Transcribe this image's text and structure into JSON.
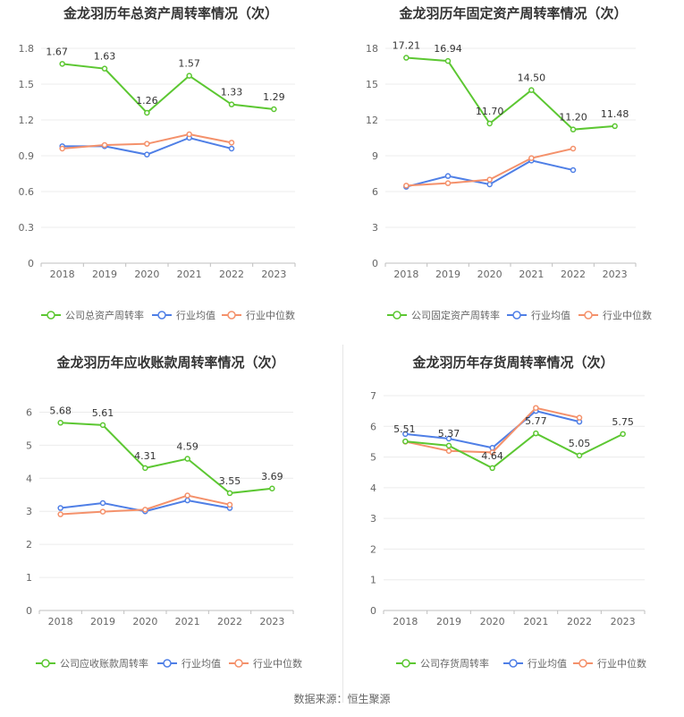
{
  "source_note": "数据来源：恒生聚源",
  "colors": {
    "company": "#5cc732",
    "avg": "#4f7fe6",
    "median": "#f4916b",
    "grid": "#ececec",
    "axis": "#bfbfbf",
    "text": "#666666",
    "title": "#333333"
  },
  "chart_data": [
    {
      "type": "line",
      "title": "金龙羽历年总资产周转率情况（次）",
      "x": [
        "2018",
        "2019",
        "2020",
        "2021",
        "2022",
        "2023"
      ],
      "ylim": [
        0,
        1.8
      ],
      "yticks": [
        "0",
        "0.3",
        "0.6",
        "0.9",
        "1.2",
        "1.5",
        "1.8"
      ],
      "grid": true,
      "legend_position": "bottom",
      "series": [
        {
          "name": "公司总资产周转率",
          "role": "company",
          "values": [
            1.67,
            1.63,
            1.26,
            1.57,
            1.33,
            1.29
          ],
          "labels": [
            "1.67",
            "1.63",
            "1.26",
            "1.57",
            "1.33",
            "1.29"
          ]
        },
        {
          "name": "行业均值",
          "role": "avg",
          "values": [
            0.98,
            0.98,
            0.91,
            1.05,
            0.96,
            null
          ]
        },
        {
          "name": "行业中位数",
          "role": "median",
          "values": [
            0.96,
            0.99,
            1.0,
            1.08,
            1.01,
            null
          ]
        }
      ]
    },
    {
      "type": "line",
      "title": "金龙羽历年固定资产周转率情况（次）",
      "x": [
        "2018",
        "2019",
        "2020",
        "2021",
        "2022",
        "2023"
      ],
      "ylim": [
        0,
        18
      ],
      "yticks": [
        "0",
        "3",
        "6",
        "9",
        "12",
        "15",
        "18"
      ],
      "grid": true,
      "legend_position": "bottom",
      "series": [
        {
          "name": "公司固定资产周转率",
          "role": "company",
          "values": [
            17.21,
            16.94,
            11.7,
            14.5,
            11.2,
            11.48
          ],
          "labels": [
            "17.21",
            "16.94",
            "11.70",
            "14.50",
            "11.20",
            "11.48"
          ]
        },
        {
          "name": "行业均值",
          "role": "avg",
          "values": [
            6.4,
            7.3,
            6.6,
            8.6,
            7.8,
            null
          ]
        },
        {
          "name": "行业中位数",
          "role": "median",
          "values": [
            6.5,
            6.7,
            7.0,
            8.8,
            9.6,
            null
          ]
        }
      ]
    },
    {
      "type": "line",
      "title": "金龙羽历年应收账款周转率情况（次）",
      "x": [
        "2018",
        "2019",
        "2020",
        "2021",
        "2022",
        "2023"
      ],
      "ylim": [
        0,
        6.5
      ],
      "yticks": [
        "0",
        "1",
        "2",
        "3",
        "4",
        "5",
        "6"
      ],
      "grid": true,
      "legend_position": "bottom",
      "series": [
        {
          "name": "公司应收账款周转率",
          "role": "company",
          "values": [
            5.68,
            5.61,
            4.31,
            4.59,
            3.55,
            3.69
          ],
          "labels": [
            "5.68",
            "5.61",
            "4.31",
            "4.59",
            "3.55",
            "3.69"
          ]
        },
        {
          "name": "行业均值",
          "role": "avg",
          "values": [
            3.1,
            3.25,
            3.0,
            3.33,
            3.1,
            null
          ]
        },
        {
          "name": "行业中位数",
          "role": "median",
          "values": [
            2.91,
            2.99,
            3.05,
            3.48,
            3.2,
            null
          ]
        }
      ]
    },
    {
      "type": "line",
      "title": "金龙羽历年存货周转率情况（次）",
      "x": [
        "2018",
        "2019",
        "2020",
        "2021",
        "2022",
        "2023"
      ],
      "ylim": [
        0,
        7
      ],
      "yticks": [
        "0",
        "1",
        "2",
        "3",
        "4",
        "5",
        "6",
        "7"
      ],
      "grid": true,
      "legend_position": "bottom",
      "series": [
        {
          "name": "公司存货周转率",
          "role": "company",
          "values": [
            5.51,
            5.37,
            4.64,
            5.77,
            5.05,
            5.75
          ],
          "labels": [
            "5.51",
            "5.37",
            "4.64",
            "5.77",
            "5.05",
            "5.75"
          ]
        },
        {
          "name": "行业均值",
          "role": "avg",
          "values": [
            5.75,
            5.6,
            5.3,
            6.5,
            6.15,
            null
          ]
        },
        {
          "name": "行业中位数",
          "role": "median",
          "values": [
            5.5,
            5.2,
            5.15,
            6.6,
            6.28,
            null
          ]
        }
      ]
    }
  ]
}
